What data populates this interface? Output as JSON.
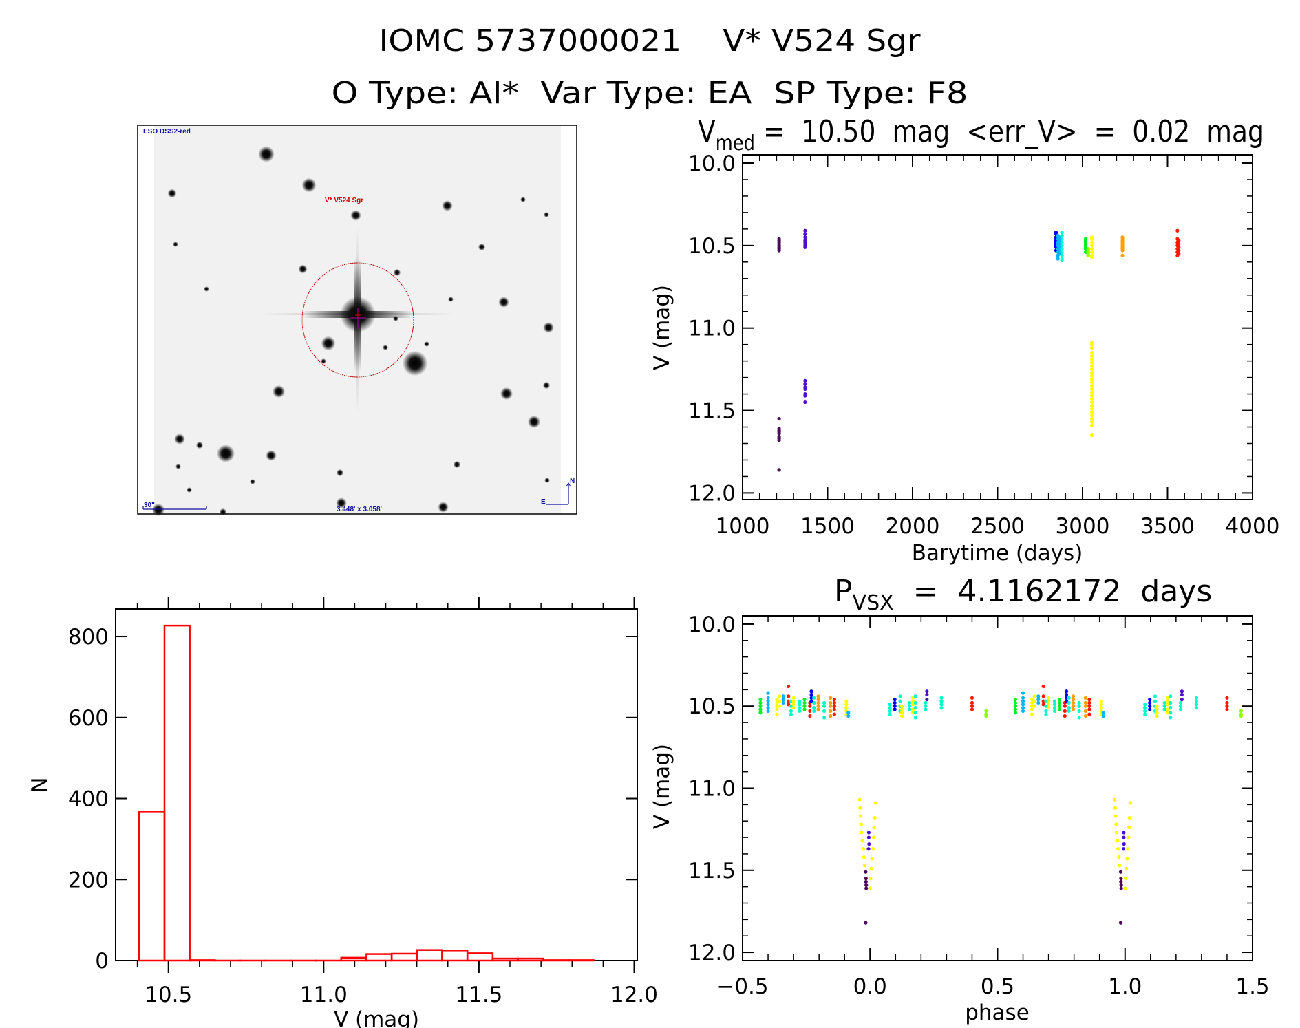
{
  "header": {
    "title_line1": "IOMC 5737000021    V* V524 Sgr",
    "title_line2": "O Type: Al*  Var Type: EA  SP Type: F8"
  },
  "image_panel": {
    "survey_label": "ESO DSS2-red",
    "target_label": "V* V524 Sgr",
    "scale_label": "30\"",
    "fov_label": "3.448' x 3.058'",
    "north_label": "N",
    "east_label": "E",
    "label_color_blue": "#1010a0",
    "label_color_red": "#d00000",
    "aperture_color": "#c00000"
  },
  "chart_data": [
    {
      "id": "light_curve",
      "type": "scatter",
      "title_main": "V",
      "title_sub": "med",
      "title_rest": " =  10.50  mag  <err_V>  =  0.02  mag",
      "xlabel": "Barytime (days)",
      "ylabel": "V (mag)",
      "xlim": [
        1000,
        4000
      ],
      "ylim": [
        9.95,
        12.04
      ],
      "y_reversed": true,
      "xticks": [
        1000,
        1500,
        2000,
        2500,
        3000,
        3500,
        4000
      ],
      "xtick_labels": [
        "1000",
        "1500",
        "2000",
        "2500",
        "3000",
        "3500",
        "4000"
      ],
      "x_minor_step": 100,
      "yticks": [
        10.0,
        10.5,
        11.0,
        11.5,
        12.0
      ],
      "ytick_labels": [
        "10.0",
        "10.5",
        "11.0",
        "11.5",
        "12.0"
      ],
      "y_minor_step": 0.1,
      "colors": [
        "#4b0a5c",
        "#5010c8",
        "#0000ff",
        "#00b4ff",
        "#00ffc8",
        "#00f020",
        "#90ff00",
        "#ffff00",
        "#ffa000",
        "#ff1800"
      ],
      "strips": [
        {
          "c": 0,
          "t": 1215,
          "v": [
            10.46,
            10.47,
            10.48,
            10.49,
            10.5,
            10.51,
            10.52,
            10.53,
            11.55,
            11.61,
            11.62,
            11.63,
            11.64,
            11.66,
            11.67,
            11.68,
            11.86
          ]
        },
        {
          "c": 1,
          "t": 1368,
          "v": [
            10.41,
            10.43,
            10.45,
            10.47,
            10.48,
            10.49,
            10.5,
            10.51,
            11.32,
            11.34,
            11.36,
            11.37,
            11.4,
            11.41,
            11.45
          ]
        },
        {
          "c": 2,
          "t": 2844,
          "v": [
            10.42,
            10.43,
            10.45,
            10.46,
            10.47,
            10.48,
            10.49,
            10.5,
            10.51,
            10.53
          ]
        },
        {
          "c": 3,
          "t": 2855,
          "v": [
            10.44,
            10.46,
            10.48,
            10.5,
            10.52,
            10.54,
            10.56,
            10.58
          ]
        },
        {
          "c": 3,
          "t": 2866,
          "v": [
            10.45,
            10.47,
            10.49,
            10.51,
            10.53,
            10.55
          ]
        },
        {
          "c": 4,
          "t": 2879,
          "v": [
            10.42,
            10.44,
            10.46,
            10.48,
            10.5,
            10.52,
            10.54,
            10.56,
            10.58,
            10.59
          ]
        },
        {
          "c": 5,
          "t": 3018,
          "v": [
            10.46,
            10.47,
            10.48,
            10.49,
            10.5,
            10.51,
            10.52,
            10.54
          ]
        },
        {
          "c": 6,
          "t": 3033,
          "v": [
            10.52,
            10.53,
            10.54,
            10.55,
            10.56
          ]
        },
        {
          "c": 7,
          "t": 3055,
          "v": [
            10.45,
            10.46,
            10.48,
            10.5,
            10.52,
            10.54,
            10.56,
            10.57,
            11.09,
            11.1,
            11.12,
            11.15,
            11.17,
            11.19,
            11.21,
            11.23,
            11.25,
            11.27,
            11.29,
            11.31,
            11.33,
            11.35,
            11.37,
            11.39,
            11.41,
            11.43,
            11.45,
            11.47,
            11.49,
            11.51,
            11.53,
            11.55,
            11.57,
            11.59,
            11.65
          ]
        },
        {
          "c": 8,
          "t": 3235,
          "v": [
            10.45,
            10.46,
            10.47,
            10.48,
            10.49,
            10.5,
            10.51,
            10.52,
            10.53,
            10.56
          ]
        },
        {
          "c": 9,
          "t": 3558,
          "v": [
            10.41,
            10.46,
            10.48,
            10.5,
            10.52,
            10.54,
            10.56
          ]
        },
        {
          "c": 9,
          "t": 3566,
          "v": [
            10.47,
            10.49,
            10.51,
            10.53,
            10.55
          ]
        }
      ]
    },
    {
      "id": "phase_curve",
      "type": "scatter",
      "title_main": "P",
      "title_sub": "VSX",
      "title_rest": "  =  4.1162172  days",
      "xlabel": "phase",
      "ylabel": "V (mag)",
      "xlim": [
        -0.5,
        1.5
      ],
      "ylim": [
        9.95,
        12.05
      ],
      "y_reversed": true,
      "period_days": 4.1162172,
      "phase_repeat": 1,
      "xticks": [
        -0.5,
        0.0,
        0.5,
        1.0,
        1.5
      ],
      "xtick_labels": [
        "−0.5",
        "0.0",
        "0.5",
        "1.0",
        "1.5"
      ],
      "x_minor_step": 0.1,
      "yticks": [
        10.0,
        10.5,
        11.0,
        11.5,
        12.0
      ],
      "ytick_labels": [
        "10.0",
        "10.5",
        "11.0",
        "11.5",
        "12.0"
      ],
      "y_minor_step": 0.1,
      "strips": [
        {
          "c": 5,
          "p": -0.43,
          "v": [
            10.46,
            10.48,
            10.5,
            10.52,
            10.54
          ]
        },
        {
          "c": 3,
          "p": -0.4,
          "v": [
            10.42,
            10.45,
            10.47,
            10.49,
            10.51,
            10.53
          ]
        },
        {
          "c": 7,
          "p": -0.365,
          "v": [
            10.46,
            10.48,
            10.5,
            10.52,
            10.55
          ]
        },
        {
          "c": 7,
          "p": -0.355,
          "v": [
            10.44,
            10.47,
            10.5
          ]
        },
        {
          "c": 3,
          "p": -0.34,
          "v": [
            10.44,
            10.46,
            10.48
          ]
        },
        {
          "c": 9,
          "p": -0.32,
          "v": [
            10.38,
            10.44,
            10.47,
            10.49
          ]
        },
        {
          "c": 4,
          "p": -0.31,
          "v": [
            10.47,
            10.5,
            10.53,
            10.55
          ]
        },
        {
          "c": 7,
          "p": -0.3,
          "v": [
            10.45,
            10.47,
            10.49,
            10.51
          ]
        },
        {
          "c": 4,
          "p": -0.276,
          "v": [
            10.47,
            10.49,
            10.51,
            10.53
          ]
        },
        {
          "c": 5,
          "p": -0.257,
          "v": [
            10.46,
            10.48,
            10.5,
            10.52
          ]
        },
        {
          "c": 9,
          "p": -0.236,
          "v": [
            10.48,
            10.5,
            10.53,
            10.56
          ]
        },
        {
          "c": 2,
          "p": -0.23,
          "v": [
            10.41,
            10.43,
            10.45,
            10.47
          ]
        },
        {
          "c": 4,
          "p": -0.22,
          "v": [
            10.45,
            10.48,
            10.51,
            10.53
          ]
        },
        {
          "c": 8,
          "p": -0.203,
          "v": [
            10.44,
            10.46,
            10.48,
            10.5,
            10.52
          ]
        },
        {
          "c": 4,
          "p": -0.18,
          "v": [
            10.48,
            10.5,
            10.53,
            10.57
          ]
        },
        {
          "c": 8,
          "p": -0.155,
          "v": [
            10.45,
            10.48,
            10.5,
            10.53,
            10.56
          ]
        },
        {
          "c": 9,
          "p": -0.14,
          "v": [
            10.46,
            10.48,
            10.5,
            10.52,
            10.55
          ]
        },
        {
          "c": 7,
          "p": -0.093,
          "v": [
            10.47,
            10.49,
            10.51,
            10.53,
            10.55
          ]
        },
        {
          "c": 3,
          "p": -0.085,
          "v": [
            10.54,
            10.56
          ]
        },
        {
          "c": 4,
          "p": 0.078,
          "v": [
            10.49,
            10.51,
            10.53,
            10.55
          ]
        },
        {
          "c": 2,
          "p": 0.097,
          "v": [
            10.46,
            10.48,
            10.5,
            10.52
          ]
        },
        {
          "c": 4,
          "p": 0.118,
          "v": [
            10.44,
            10.47,
            10.5,
            10.53
          ]
        },
        {
          "c": 7,
          "p": 0.125,
          "v": [
            10.5,
            10.52,
            10.54,
            10.56
          ]
        },
        {
          "c": 4,
          "p": 0.155,
          "v": [
            10.48,
            10.5,
            10.52
          ]
        },
        {
          "c": 7,
          "p": 0.168,
          "v": [
            10.45,
            10.47,
            10.49,
            10.52,
            10.54
          ]
        },
        {
          "c": 4,
          "p": 0.178,
          "v": [
            10.44,
            10.48,
            10.51,
            10.54,
            10.57
          ]
        },
        {
          "c": 4,
          "p": 0.218,
          "v": [
            10.48,
            10.5,
            10.52
          ]
        },
        {
          "c": 1,
          "p": 0.223,
          "v": [
            10.41,
            10.43,
            10.46
          ]
        },
        {
          "c": 4,
          "p": 0.28,
          "v": [
            10.45,
            10.47,
            10.49,
            10.51
          ]
        },
        {
          "c": 9,
          "p": 0.4,
          "v": [
            10.45,
            10.48,
            10.5,
            10.52
          ]
        },
        {
          "c": 6,
          "p": 0.455,
          "v": [
            10.53,
            10.55,
            10.56
          ]
        }
      ],
      "points": [
        [
          -0.041,
          11.07,
          7
        ],
        [
          -0.039,
          11.12,
          7
        ],
        [
          -0.037,
          11.17,
          7
        ],
        [
          -0.035,
          11.22,
          7
        ],
        [
          -0.033,
          11.27,
          7
        ],
        [
          -0.03,
          11.32,
          7
        ],
        [
          -0.027,
          11.37,
          7
        ],
        [
          -0.024,
          11.42,
          7
        ],
        [
          -0.021,
          11.47,
          7
        ],
        [
          0.002,
          11.55,
          7
        ],
        [
          0.005,
          11.49,
          7
        ],
        [
          0.008,
          11.43,
          7
        ],
        [
          0.011,
          11.37,
          7
        ],
        [
          0.014,
          11.3,
          7
        ],
        [
          0.016,
          11.24,
          7
        ],
        [
          0.018,
          11.18,
          7
        ],
        [
          0.021,
          11.09,
          7
        ],
        [
          0.0,
          11.61,
          7
        ],
        [
          -0.017,
          11.51,
          0
        ],
        [
          -0.016,
          11.55,
          0
        ],
        [
          -0.016,
          11.57,
          0
        ],
        [
          -0.015,
          11.59,
          0
        ],
        [
          -0.015,
          11.61,
          0
        ],
        [
          -0.017,
          11.82,
          0
        ],
        [
          -0.005,
          11.27,
          1
        ],
        [
          -0.005,
          11.3,
          1
        ],
        [
          -0.004,
          11.34,
          1
        ],
        [
          -0.006,
          11.37,
          1
        ]
      ]
    },
    {
      "id": "histogram",
      "type": "bar",
      "xlabel": "V (mag)",
      "ylabel": "N",
      "xlim": [
        10.33,
        12.01
      ],
      "ylim": [
        0,
        868
      ],
      "xticks": [
        10.5,
        11.0,
        11.5,
        12.0
      ],
      "xtick_labels": [
        "10.5",
        "11.0",
        "11.5",
        "12.0"
      ],
      "x_minor_step": 0.1,
      "yticks": [
        0,
        200,
        400,
        600,
        800
      ],
      "ytick_labels": [
        "0",
        "200",
        "400",
        "600",
        "800"
      ],
      "bin_start": 10.406,
      "bin_width": 0.0813,
      "counts": [
        368,
        827,
        1,
        0,
        0,
        0,
        0,
        0,
        7,
        16,
        17,
        26,
        25,
        18,
        5,
        5,
        1,
        1
      ],
      "bar_color": "#ff0000"
    }
  ]
}
